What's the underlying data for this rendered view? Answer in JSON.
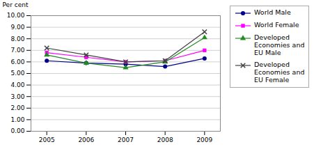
{
  "chart_data": {
    "type": "line",
    "x": [
      2005,
      2006,
      2007,
      2008,
      2009
    ],
    "series": [
      {
        "name": "World Male",
        "color": "#00008B",
        "marker": "circle",
        "values": [
          6.1,
          5.9,
          5.8,
          5.6,
          6.3
        ]
      },
      {
        "name": "World Female",
        "color": "#FF00FF",
        "marker": "square",
        "values": [
          6.8,
          6.4,
          6.0,
          6.1,
          7.0
        ]
      },
      {
        "name": "Developed\nEconomies and\nEU Male",
        "color": "#228B22",
        "marker": "triangle",
        "values": [
          6.6,
          5.9,
          5.5,
          6.0,
          8.1
        ]
      },
      {
        "name": "Developed\nEconomies and\nEU Female",
        "color": "#404040",
        "marker": "times",
        "values": [
          7.2,
          6.6,
          6.0,
          6.1,
          8.6
        ]
      }
    ],
    "ylabel": "Per cent",
    "xlim": [
      2004.6,
      2009.4
    ],
    "xticks": [
      2005,
      2006,
      2007,
      2008,
      2009
    ],
    "ylim": [
      0.0,
      10.0
    ],
    "yticks": [
      {
        "value": 0,
        "label": "0.00"
      },
      {
        "value": 1,
        "label": "1.00"
      },
      {
        "value": 2,
        "label": "2.00"
      },
      {
        "value": 3,
        "label": "3.00"
      },
      {
        "value": 4,
        "label": "4.00"
      },
      {
        "value": 5,
        "label": "5.00"
      },
      {
        "value": 6,
        "label": "6.00"
      },
      {
        "value": 7,
        "label": "7.00"
      },
      {
        "value": 8,
        "label": "8.00"
      },
      {
        "value": 9,
        "label": "9.00"
      },
      {
        "value": 10,
        "label": "10.00"
      }
    ],
    "grid": true,
    "legend": "right"
  }
}
